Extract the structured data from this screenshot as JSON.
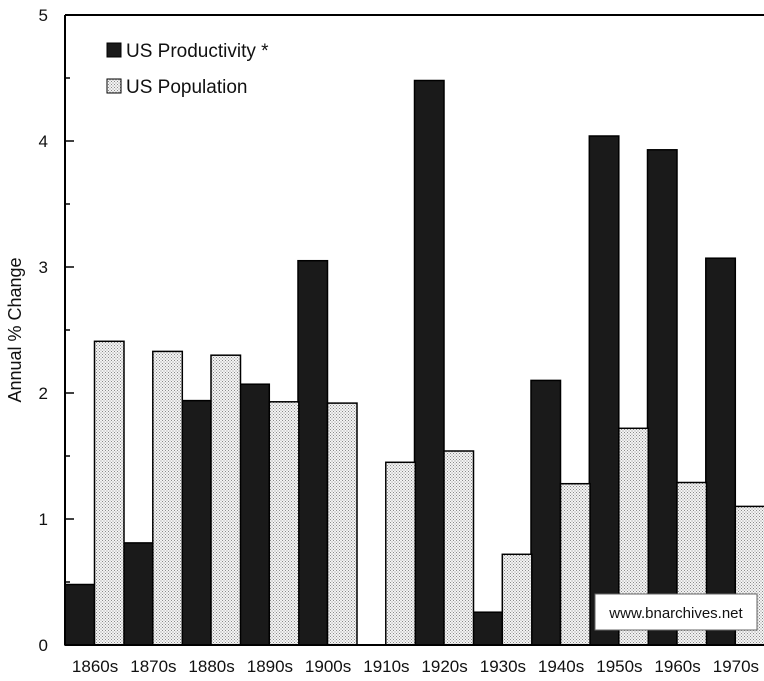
{
  "chart_data": {
    "type": "bar",
    "categories": [
      "1860s",
      "1870s",
      "1880s",
      "1890s",
      "1900s",
      "1910s",
      "1920s",
      "1930s",
      "1940s",
      "1950s",
      "1960s",
      "1970s"
    ],
    "series": [
      {
        "name": "US Productivity *",
        "color": "#1a1a1a",
        "pattern": "solid",
        "values": [
          0.48,
          0.81,
          1.94,
          2.07,
          3.05,
          null,
          4.48,
          0.26,
          2.1,
          4.04,
          3.93,
          3.07
        ]
      },
      {
        "name": "US Population",
        "color": "#dddddd",
        "pattern": "dotted",
        "values": [
          2.41,
          2.33,
          2.3,
          1.93,
          1.92,
          1.45,
          1.54,
          0.72,
          1.28,
          1.72,
          1.29,
          1.1
        ]
      }
    ],
    "ylabel": "Annual % Change",
    "yticks": [
      0,
      1,
      2,
      3,
      4,
      5
    ],
    "ylim": [
      0,
      5
    ],
    "legend_position": "top-left",
    "watermark": "www.bnarchives.net"
  }
}
